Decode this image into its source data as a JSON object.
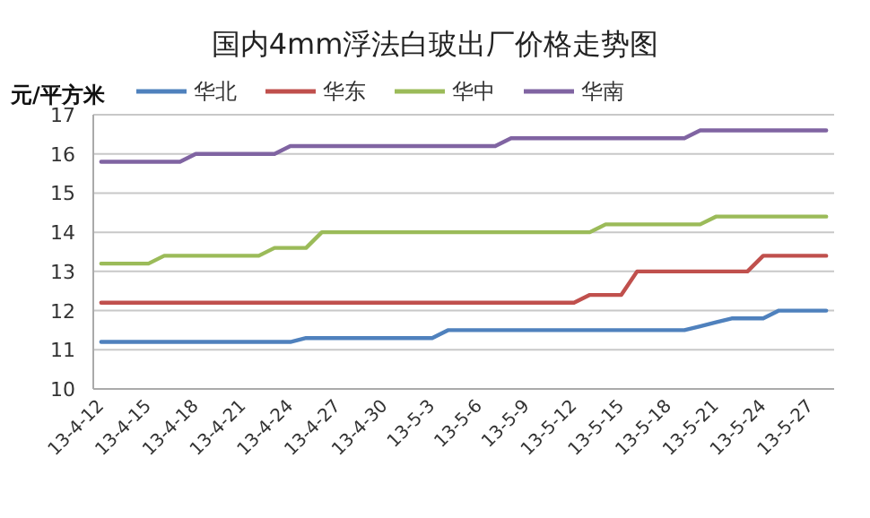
{
  "chart_data": {
    "type": "line",
    "title": "国内4mm浮法白玻出厂价格走势图",
    "ylabel": "元/平方米",
    "categories": [
      "13-4-12",
      null,
      null,
      "13-4-15",
      null,
      null,
      "13-4-18",
      null,
      null,
      "13-4-21",
      null,
      null,
      "13-4-24",
      null,
      null,
      "13-4-27",
      null,
      null,
      "13-4-30",
      null,
      null,
      "13-5-3",
      null,
      null,
      "13-5-6",
      null,
      null,
      "13-5-9",
      null,
      null,
      "13-5-12",
      null,
      null,
      "13-5-15",
      null,
      null,
      "13-5-18",
      null,
      null,
      "13-5-21",
      null,
      null,
      "13-5-24",
      null,
      null,
      "13-5-27",
      null
    ],
    "series": [
      {
        "name": "华北",
        "color": "#4f81bd",
        "values": [
          11.2,
          11.2,
          11.2,
          11.2,
          11.2,
          11.2,
          11.2,
          11.2,
          11.2,
          11.2,
          11.2,
          11.2,
          11.2,
          11.3,
          11.3,
          11.3,
          11.3,
          11.3,
          11.3,
          11.3,
          11.3,
          11.3,
          11.5,
          11.5,
          11.5,
          11.5,
          11.5,
          11.5,
          11.5,
          11.5,
          11.5,
          11.5,
          11.5,
          11.5,
          11.5,
          11.5,
          11.5,
          11.5,
          11.6,
          11.7,
          11.8,
          11.8,
          11.8,
          12.0,
          12.0,
          12.0,
          12.0
        ]
      },
      {
        "name": "华东",
        "color": "#c0504d",
        "values": [
          12.2,
          12.2,
          12.2,
          12.2,
          12.2,
          12.2,
          12.2,
          12.2,
          12.2,
          12.2,
          12.2,
          12.2,
          12.2,
          12.2,
          12.2,
          12.2,
          12.2,
          12.2,
          12.2,
          12.2,
          12.2,
          12.2,
          12.2,
          12.2,
          12.2,
          12.2,
          12.2,
          12.2,
          12.2,
          12.2,
          12.2,
          12.4,
          12.4,
          12.4,
          13.0,
          13.0,
          13.0,
          13.0,
          13.0,
          13.0,
          13.0,
          13.0,
          13.4,
          13.4,
          13.4,
          13.4,
          13.4
        ]
      },
      {
        "name": "华中",
        "color": "#9bbb59",
        "values": [
          13.2,
          13.2,
          13.2,
          13.2,
          13.4,
          13.4,
          13.4,
          13.4,
          13.4,
          13.4,
          13.4,
          13.6,
          13.6,
          13.6,
          14.0,
          14.0,
          14.0,
          14.0,
          14.0,
          14.0,
          14.0,
          14.0,
          14.0,
          14.0,
          14.0,
          14.0,
          14.0,
          14.0,
          14.0,
          14.0,
          14.0,
          14.0,
          14.2,
          14.2,
          14.2,
          14.2,
          14.2,
          14.2,
          14.2,
          14.4,
          14.4,
          14.4,
          14.4,
          14.4,
          14.4,
          14.4,
          14.4
        ]
      },
      {
        "name": "华南",
        "color": "#8064a2",
        "values": [
          15.8,
          15.8,
          15.8,
          15.8,
          15.8,
          15.8,
          16.0,
          16.0,
          16.0,
          16.0,
          16.0,
          16.0,
          16.2,
          16.2,
          16.2,
          16.2,
          16.2,
          16.2,
          16.2,
          16.2,
          16.2,
          16.2,
          16.2,
          16.2,
          16.2,
          16.2,
          16.4,
          16.4,
          16.4,
          16.4,
          16.4,
          16.4,
          16.4,
          16.4,
          16.4,
          16.4,
          16.4,
          16.4,
          16.6,
          16.6,
          16.6,
          16.6,
          16.6,
          16.6,
          16.6,
          16.6,
          16.6
        ]
      }
    ],
    "ylim": [
      10,
      17
    ],
    "yticks": [
      10,
      11,
      12,
      13,
      14,
      15,
      16,
      17
    ],
    "grid": "y",
    "legend": "top",
    "marker": "none",
    "line_style": "solid"
  }
}
